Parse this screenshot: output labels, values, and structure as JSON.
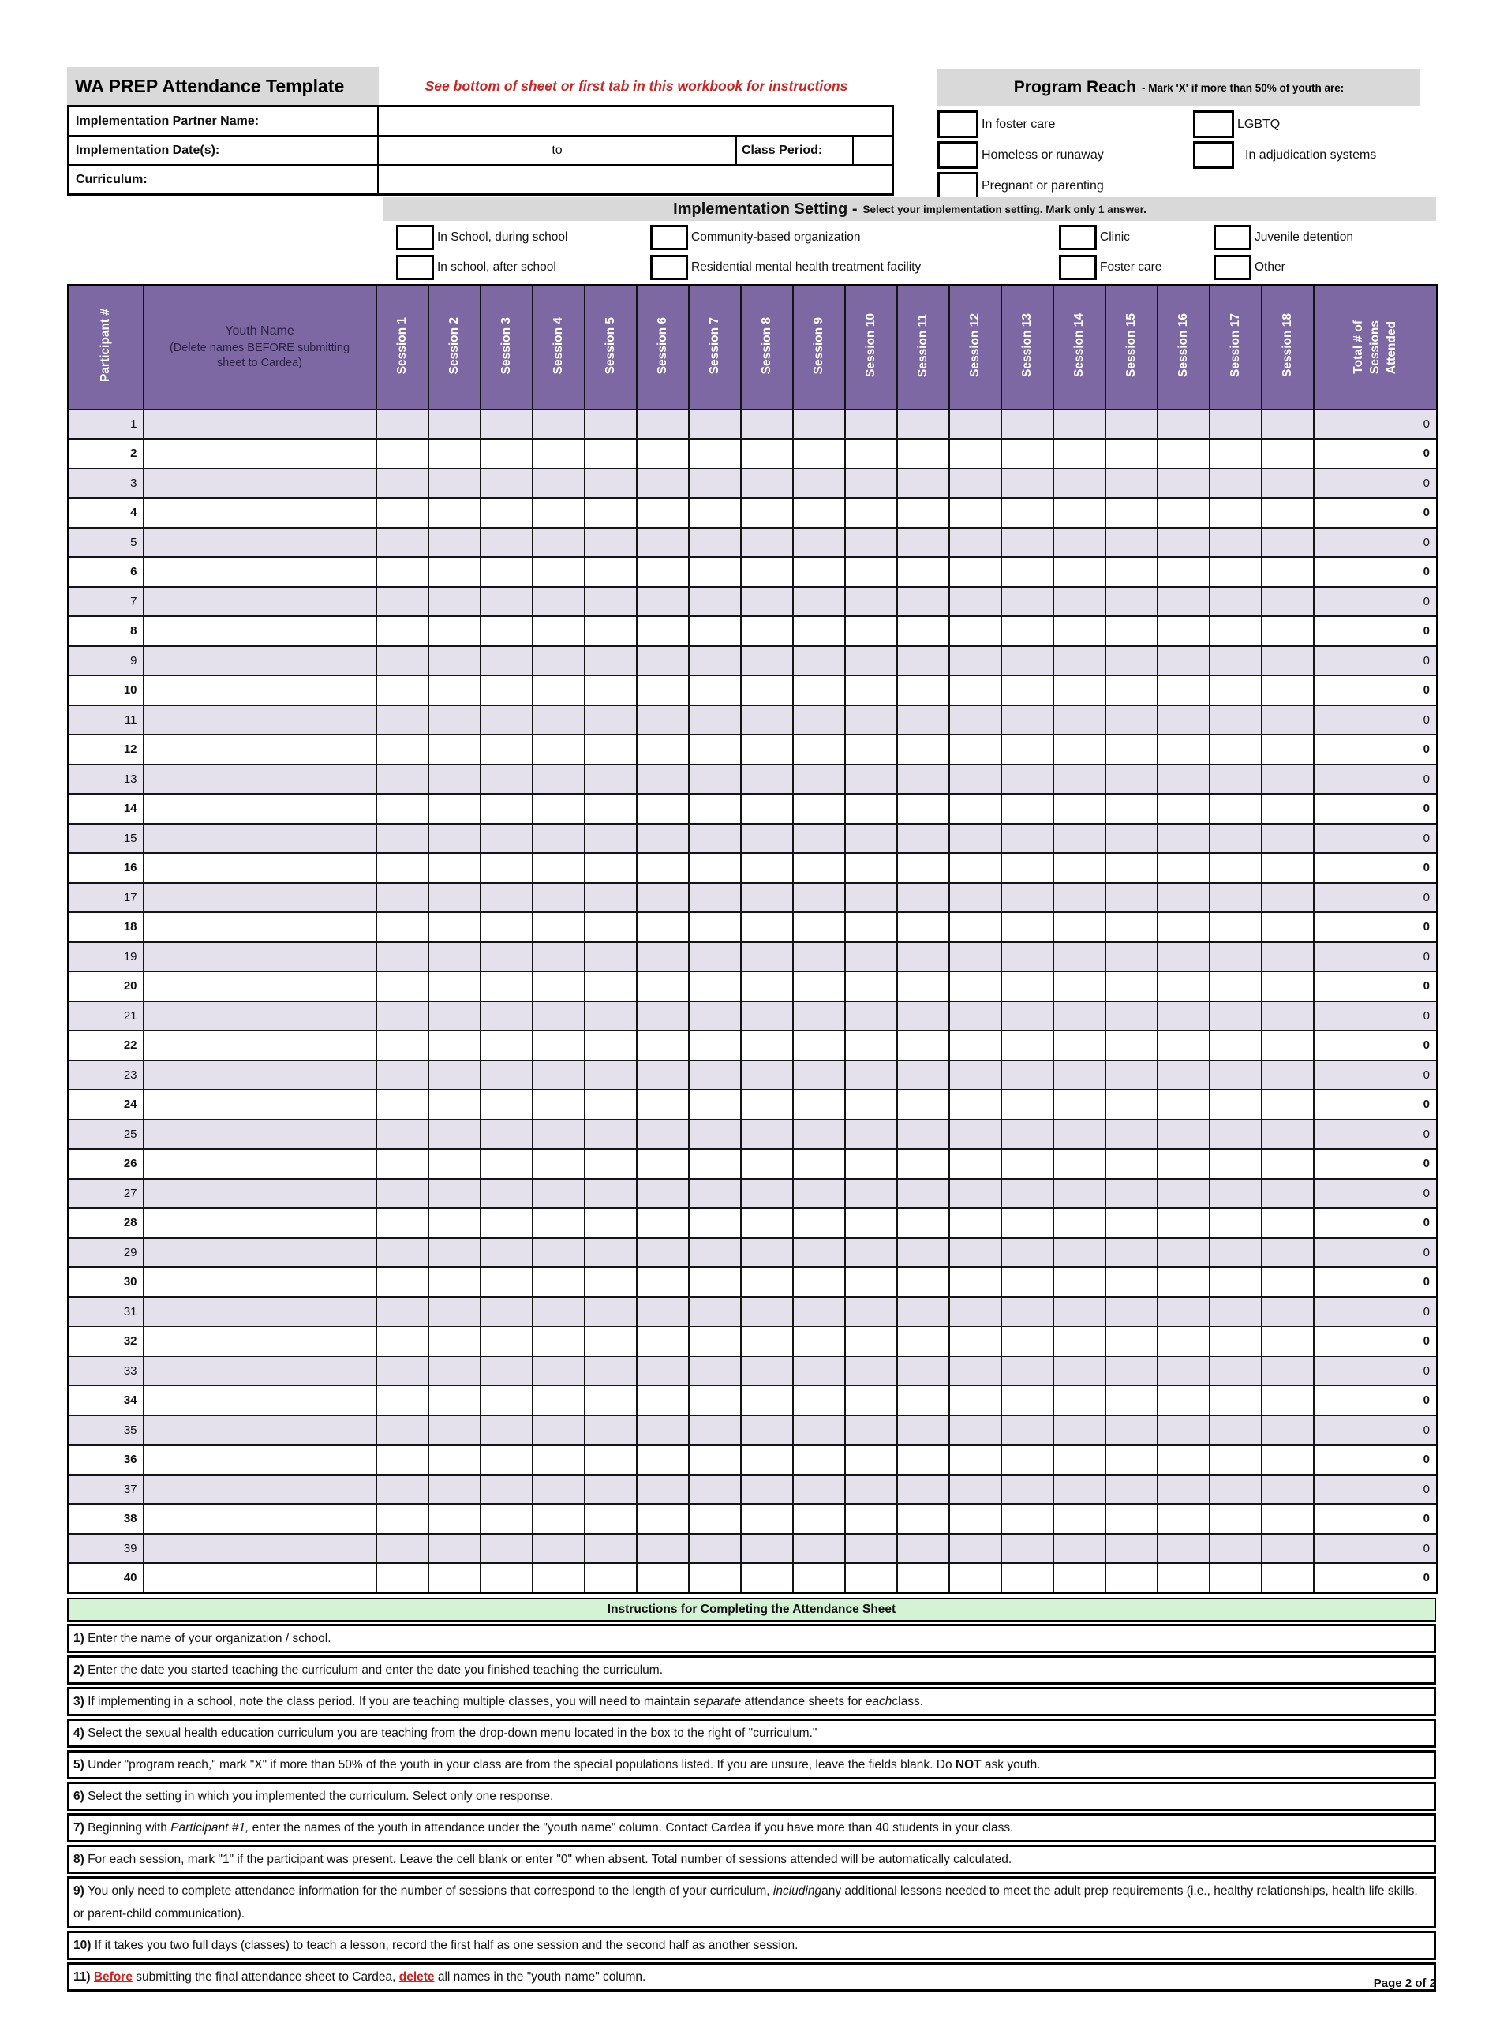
{
  "colors": {
    "header_purple": "#7E68A3",
    "row_lavender": "#E4E0EC",
    "band_gray": "#D9D9D9",
    "instructions_green": "#D4F2D4",
    "accent_red": "#CF2323",
    "header_text_dark": "#2A2044"
  },
  "header": {
    "title": "WA PREP Attendance Template",
    "note": "See bottom of sheet or first tab in this workbook for instructions",
    "page_footer": "Page 2 of 2"
  },
  "form": {
    "partner_label": "Implementation Partner Name:",
    "dates_label": "Implementation Date(s):",
    "dates_to": "to",
    "class_period_label": "Class Period:",
    "curriculum_label": "Curriculum:"
  },
  "program_reach": {
    "title": "Program Reach",
    "subtitle": "- Mark 'X' if more than 50% of youth are:",
    "col1": [
      "In foster care",
      "Homeless or runaway",
      "Pregnant or parenting"
    ],
    "col2": [
      "LGBTQ",
      "In adjudication systems"
    ]
  },
  "implementation_setting": {
    "title": "Implementation Setting -",
    "subtitle": "Select your implementation setting. Mark only 1 answer.",
    "columns": [
      [
        "In School, during school",
        "In school, after school"
      ],
      [
        "Community-based organization",
        "Residential mental health treatment facility"
      ],
      [
        "Clinic",
        "Foster care"
      ],
      [
        "Juvenile detention",
        "Other"
      ]
    ]
  },
  "table": {
    "participant_header": "Participant #",
    "youth_name_header": "Youth Name",
    "youth_name_note1": "(Delete names BEFORE submitting",
    "youth_name_note2": "sheet to Cardea)",
    "sessions": [
      "Session 1",
      "Session 2",
      "Session 3",
      "Session 4",
      "Session 5",
      "Session 6",
      "Session 7",
      "Session 8",
      "Session 9",
      "Session 10",
      "Session 11",
      "Session 12",
      "Session 13",
      "Session 14",
      "Session 15",
      "Session 16",
      "Session 17",
      "Session 18"
    ],
    "total_header_lines": [
      "Total # of",
      "Sessions",
      "Attended"
    ],
    "rows": [
      {
        "n": "1",
        "total": "0"
      },
      {
        "n": "2",
        "total": "0"
      },
      {
        "n": "3",
        "total": "0"
      },
      {
        "n": "4",
        "total": "0"
      },
      {
        "n": "5",
        "total": "0"
      },
      {
        "n": "6",
        "total": "0"
      },
      {
        "n": "7",
        "total": "0"
      },
      {
        "n": "8",
        "total": "0"
      },
      {
        "n": "9",
        "total": "0"
      },
      {
        "n": "10",
        "total": "0"
      },
      {
        "n": "11",
        "total": "0"
      },
      {
        "n": "12",
        "total": "0"
      },
      {
        "n": "13",
        "total": "0"
      },
      {
        "n": "14",
        "total": "0"
      },
      {
        "n": "15",
        "total": "0"
      },
      {
        "n": "16",
        "total": "0"
      },
      {
        "n": "17",
        "total": "0"
      },
      {
        "n": "18",
        "total": "0"
      },
      {
        "n": "19",
        "total": "0"
      },
      {
        "n": "20",
        "total": "0"
      },
      {
        "n": "21",
        "total": "0"
      },
      {
        "n": "22",
        "total": "0"
      },
      {
        "n": "23",
        "total": "0"
      },
      {
        "n": "24",
        "total": "0"
      },
      {
        "n": "25",
        "total": "0"
      },
      {
        "n": "26",
        "total": "0"
      },
      {
        "n": "27",
        "total": "0"
      },
      {
        "n": "28",
        "total": "0"
      },
      {
        "n": "29",
        "total": "0"
      },
      {
        "n": "30",
        "total": "0"
      },
      {
        "n": "31",
        "total": "0"
      },
      {
        "n": "32",
        "total": "0"
      },
      {
        "n": "33",
        "total": "0"
      },
      {
        "n": "34",
        "total": "0"
      },
      {
        "n": "35",
        "total": "0"
      },
      {
        "n": "36",
        "total": "0"
      },
      {
        "n": "37",
        "total": "0"
      },
      {
        "n": "38",
        "total": "0"
      },
      {
        "n": "39",
        "total": "0"
      },
      {
        "n": "40",
        "total": "0"
      }
    ]
  },
  "instructions": {
    "title": "Instructions for Completing the Attendance Sheet",
    "items": [
      {
        "tall": false,
        "segments": [
          {
            "t": "1) ",
            "s": "b"
          },
          {
            "t": "Enter the name of your organization / school.",
            "s": ""
          }
        ]
      },
      {
        "tall": false,
        "segments": [
          {
            "t": "2) ",
            "s": "b"
          },
          {
            "t": "Enter the date you started teaching the curriculum and enter the date you finished teaching the curriculum.",
            "s": ""
          }
        ]
      },
      {
        "tall": false,
        "segments": [
          {
            "t": "3) ",
            "s": "b"
          },
          {
            "t": "If implementing in a school, note the class period. If you are teaching multiple classes, you will need to maintain ",
            "s": ""
          },
          {
            "t": "separate",
            "s": "i"
          },
          {
            "t": " attendance sheets for ",
            "s": ""
          },
          {
            "t": "each",
            "s": "i"
          },
          {
            "t": "class.",
            "s": ""
          }
        ]
      },
      {
        "tall": false,
        "segments": [
          {
            "t": "4) ",
            "s": "b"
          },
          {
            "t": "Select the sexual health education curriculum you are teaching from the drop-down menu located in the box to the right of \"curriculum.\"",
            "s": ""
          }
        ]
      },
      {
        "tall": false,
        "segments": [
          {
            "t": "5) ",
            "s": "b"
          },
          {
            "t": "Under \"program reach,\" mark \"X\" if more than 50% of the youth in your class are from the special populations listed. If you are unsure, leave the fields blank. Do ",
            "s": ""
          },
          {
            "t": "NOT",
            "s": "b"
          },
          {
            "t": " ask youth.",
            "s": ""
          }
        ]
      },
      {
        "tall": false,
        "segments": [
          {
            "t": "6) ",
            "s": "b"
          },
          {
            "t": "Select the setting in which you implemented the curriculum. Select only one response.",
            "s": ""
          }
        ]
      },
      {
        "tall": false,
        "segments": [
          {
            "t": "7) ",
            "s": "b"
          },
          {
            "t": "Beginning with ",
            "s": ""
          },
          {
            "t": "Participant #1,",
            "s": "i"
          },
          {
            "t": " enter the names of the youth in attendance under the \"youth name\" column. Contact Cardea if you have more than 40 students in your class.",
            "s": ""
          }
        ]
      },
      {
        "tall": false,
        "segments": [
          {
            "t": "8) ",
            "s": "b"
          },
          {
            "t": "For each session, mark \"1\" if the participant was present. Leave the cell blank or enter \"0\" when absent. Total number of sessions attended will be automatically calculated.",
            "s": ""
          }
        ]
      },
      {
        "tall": true,
        "segments": [
          {
            "t": "9) ",
            "s": "b"
          },
          {
            "t": "You only need to complete attendance information for the number of sessions that correspond to the length of your curriculum, ",
            "s": ""
          },
          {
            "t": "including",
            "s": "i"
          },
          {
            "t": "any additional lessons needed to meet the adult prep requirements (i.e., healthy relationships, health life skills, or parent-child communication).",
            "s": ""
          }
        ]
      },
      {
        "tall": false,
        "segments": [
          {
            "t": "10) ",
            "s": "b"
          },
          {
            "t": "If it takes you two full days (classes) to teach a lesson, record the first half as one session and the second half as another session.",
            "s": ""
          }
        ]
      },
      {
        "tall": false,
        "segments": [
          {
            "t": "11) ",
            "s": "b"
          },
          {
            "t": "Before",
            "s": "rb"
          },
          {
            "t": " submitting the final attendance sheet to Cardea, ",
            "s": ""
          },
          {
            "t": "delete",
            "s": "rb"
          },
          {
            "t": " all names  in the \"youth name\" column.",
            "s": ""
          }
        ]
      }
    ]
  }
}
